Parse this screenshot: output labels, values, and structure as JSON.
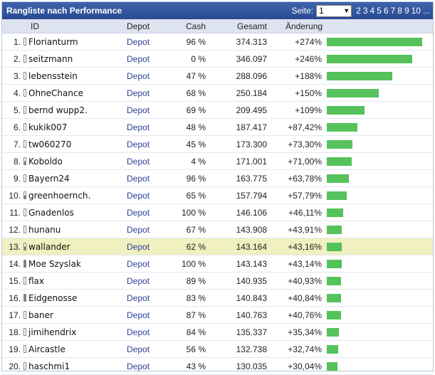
{
  "header": {
    "title": "Rangliste nach Performance",
    "page_label": "Seite:",
    "page_selected": "1",
    "page_links": [
      "2",
      "3",
      "4",
      "5",
      "6",
      "7",
      "8",
      "9",
      "10"
    ],
    "page_more": "..."
  },
  "columns": {
    "id": "ID",
    "depot": "Depot",
    "cash": "Cash",
    "total": "Gesamt",
    "change": "Änderung"
  },
  "bar_color": "#55c25c",
  "highlight_color": "#f0f0c0",
  "rows": [
    {
      "rank": "1.",
      "name": "Florianturm",
      "icon": "empty",
      "depot": "Depot",
      "cash": "96 %",
      "total": "374.313",
      "change": "+274%",
      "pct": 274
    },
    {
      "rank": "2.",
      "name": "seitzmann",
      "icon": "empty",
      "depot": "Depot",
      "cash": "0 %",
      "total": "346.097",
      "change": "+246%",
      "pct": 246
    },
    {
      "rank": "3.",
      "name": "lebensstein",
      "icon": "empty",
      "depot": "Depot",
      "cash": "47 %",
      "total": "288.096",
      "change": "+188%",
      "pct": 188
    },
    {
      "rank": "4.",
      "name": "OhneChance",
      "icon": "empty",
      "depot": "Depot",
      "cash": "68 %",
      "total": "250.184",
      "change": "+150%",
      "pct": 150
    },
    {
      "rank": "5.",
      "name": "bernd wupp2.",
      "icon": "empty",
      "depot": "Depot",
      "cash": "69 %",
      "total": "209.495",
      "change": "+109%",
      "pct": 109
    },
    {
      "rank": "6.",
      "name": "kukik007",
      "icon": "empty",
      "depot": "Depot",
      "cash": "48 %",
      "total": "187.417",
      "change": "+87,42%",
      "pct": 87.42
    },
    {
      "rank": "7.",
      "name": "tw060270",
      "icon": "empty",
      "depot": "Depot",
      "cash": "45 %",
      "total": "173.300",
      "change": "+73,30%",
      "pct": 73.3
    },
    {
      "rank": "8.",
      "name": "Koboldo",
      "icon": "half",
      "depot": "Depot",
      "cash": "4 %",
      "total": "171.001",
      "change": "+71,00%",
      "pct": 71.0
    },
    {
      "rank": "9.",
      "name": "Bayern24",
      "icon": "empty",
      "depot": "Depot",
      "cash": "96 %",
      "total": "163.775",
      "change": "+63,78%",
      "pct": 63.78
    },
    {
      "rank": "10.",
      "name": "greenhoernch.",
      "icon": "half",
      "depot": "Depot",
      "cash": "65 %",
      "total": "157.794",
      "change": "+57,79%",
      "pct": 57.79
    },
    {
      "rank": "11.",
      "name": "Gnadenlos",
      "icon": "empty",
      "depot": "Depot",
      "cash": "100 %",
      "total": "146.106",
      "change": "+46,11%",
      "pct": 46.11
    },
    {
      "rank": "12.",
      "name": "hunanu",
      "icon": "empty",
      "depot": "Depot",
      "cash": "67 %",
      "total": "143.908",
      "change": "+43,91%",
      "pct": 43.91
    },
    {
      "rank": "13.",
      "name": "wallander",
      "icon": "half",
      "depot": "Depot",
      "cash": "62 %",
      "total": "143.164",
      "change": "+43,16%",
      "pct": 43.16,
      "highlight": true
    },
    {
      "rank": "14.",
      "name": "Moe Szyslak",
      "icon": "filled",
      "depot": "Depot",
      "cash": "100 %",
      "total": "143.143",
      "change": "+43,14%",
      "pct": 43.14
    },
    {
      "rank": "15.",
      "name": "flax",
      "icon": "empty",
      "depot": "Depot",
      "cash": "89 %",
      "total": "140.935",
      "change": "+40,93%",
      "pct": 40.93
    },
    {
      "rank": "16.",
      "name": "Eidgenosse",
      "icon": "filled",
      "depot": "Depot",
      "cash": "83 %",
      "total": "140.843",
      "change": "+40,84%",
      "pct": 40.84
    },
    {
      "rank": "17.",
      "name": "baner",
      "icon": "empty",
      "depot": "Depot",
      "cash": "87 %",
      "total": "140.763",
      "change": "+40,76%",
      "pct": 40.76
    },
    {
      "rank": "18.",
      "name": "jimihendrix",
      "icon": "empty",
      "depot": "Depot",
      "cash": "84 %",
      "total": "135.337",
      "change": "+35,34%",
      "pct": 35.34
    },
    {
      "rank": "19.",
      "name": "Aircastle",
      "icon": "empty",
      "depot": "Depot",
      "cash": "56 %",
      "total": "132.738",
      "change": "+32,74%",
      "pct": 32.74
    },
    {
      "rank": "20.",
      "name": "haschmi1",
      "icon": "empty",
      "depot": "Depot",
      "cash": "43 %",
      "total": "130.035",
      "change": "+30,04%",
      "pct": 30.04
    }
  ]
}
